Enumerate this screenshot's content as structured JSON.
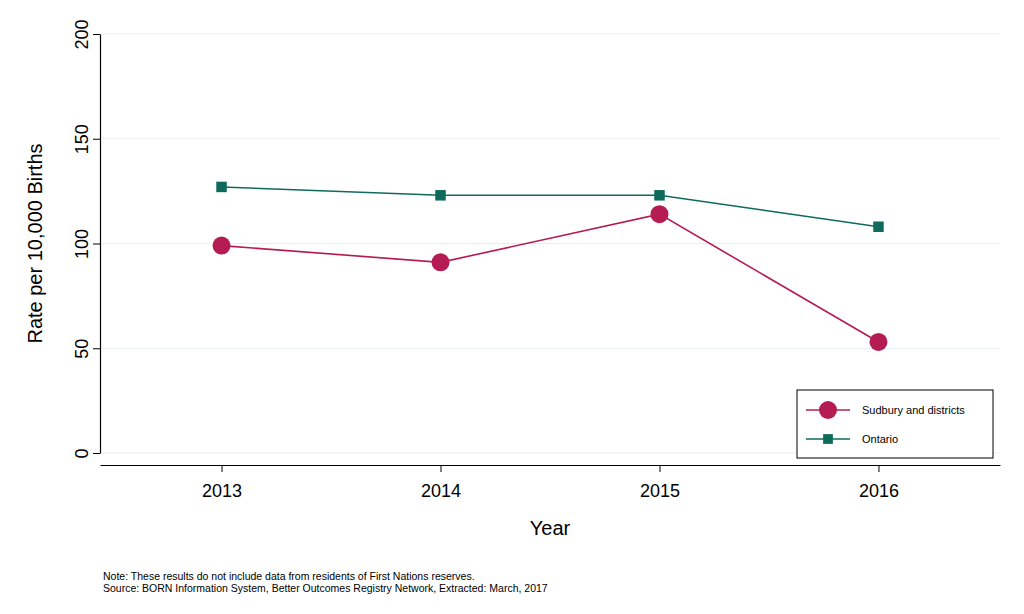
{
  "chart_data": {
    "type": "line",
    "x_label": "Year",
    "y_label": "Rate per 10,000 Births",
    "categories": [
      "2013",
      "2014",
      "2015",
      "2016"
    ],
    "series": [
      {
        "name": "Sudbury and districts",
        "color": "#b51d52",
        "marker": "circle",
        "line_style": "solid",
        "values": [
          99,
          91,
          114,
          53
        ]
      },
      {
        "name": "Ontario",
        "color": "#0e6b5b",
        "marker": "square",
        "line_style": "solid",
        "values": [
          127,
          123,
          123,
          108
        ]
      }
    ],
    "ylim": [
      0,
      200
    ],
    "yticks": [
      0,
      50,
      100,
      150,
      200
    ],
    "grid": true,
    "legend": "lower right",
    "annotations": [
      "Note: These results do not include data from residents of First Nations reserves.",
      "Source: BORN Information System, Better Outcomes Registry Network, Extracted: March, 2017"
    ]
  }
}
